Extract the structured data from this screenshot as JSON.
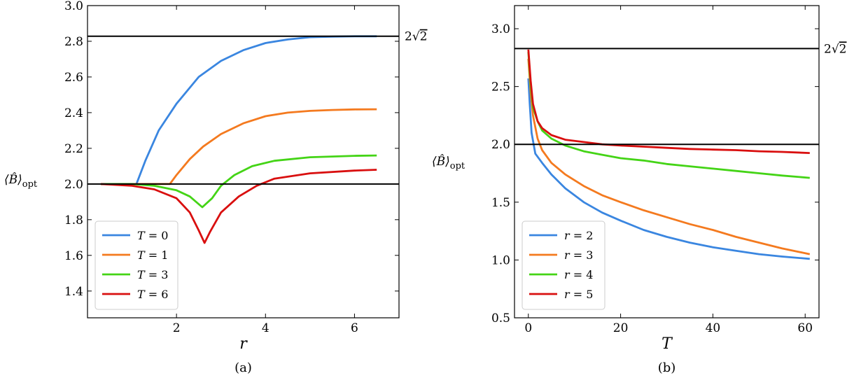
{
  "chart_data": [
    {
      "type": "line",
      "caption": "(a)",
      "xlabel": "r",
      "ylabel": "⟨B̂⟩opt",
      "ylabel_base": "⟨B̂⟩",
      "ylabel_sub": "opt",
      "xlim": [
        0.0,
        7.0
      ],
      "ylim": [
        1.25,
        3.0
      ],
      "xticks": [
        2,
        4,
        6
      ],
      "xtick_labels": [
        "2",
        "4",
        "6"
      ],
      "yticks": [
        1.4,
        1.6,
        1.8,
        2.0,
        2.2,
        2.4,
        2.6,
        2.8,
        3.0
      ],
      "ytick_labels": [
        "1.4",
        "1.6",
        "1.8",
        "2.0",
        "2.2",
        "2.4",
        "2.6",
        "2.8",
        "3.0"
      ],
      "reference_lines": [
        {
          "y": 2.8284,
          "label": "2√2",
          "label_base": "2",
          "label_root": "2"
        },
        {
          "y": 2.0,
          "label": ""
        }
      ],
      "legend": "lower-left",
      "series": [
        {
          "name": "T = 0",
          "var": "T",
          "val": "0",
          "color": "#3a86e0",
          "points": [
            [
              0.3,
              2.0
            ],
            [
              1.0,
              2.0
            ],
            [
              1.1,
              2.0
            ],
            [
              1.3,
              2.13
            ],
            [
              1.6,
              2.3
            ],
            [
              2.0,
              2.45
            ],
            [
              2.5,
              2.6
            ],
            [
              3.0,
              2.69
            ],
            [
              3.5,
              2.75
            ],
            [
              4.0,
              2.79
            ],
            [
              4.5,
              2.81
            ],
            [
              5.0,
              2.823
            ],
            [
              5.5,
              2.826
            ],
            [
              6.0,
              2.828
            ],
            [
              6.5,
              2.828
            ]
          ]
        },
        {
          "name": "T = 1",
          "var": "T",
          "val": "1",
          "color": "#f47a1f",
          "points": [
            [
              0.3,
              2.0
            ],
            [
              1.5,
              2.0
            ],
            [
              1.85,
              2.0
            ],
            [
              2.0,
              2.05
            ],
            [
              2.3,
              2.14
            ],
            [
              2.6,
              2.21
            ],
            [
              3.0,
              2.28
            ],
            [
              3.5,
              2.34
            ],
            [
              4.0,
              2.38
            ],
            [
              4.5,
              2.4
            ],
            [
              5.0,
              2.41
            ],
            [
              5.5,
              2.415
            ],
            [
              6.0,
              2.418
            ],
            [
              6.5,
              2.419
            ]
          ]
        },
        {
          "name": "T = 3",
          "var": "T",
          "val": "3",
          "color": "#44d416",
          "points": [
            [
              0.3,
              2.0
            ],
            [
              1.0,
              2.0
            ],
            [
              1.5,
              1.99
            ],
            [
              2.0,
              1.965
            ],
            [
              2.3,
              1.93
            ],
            [
              2.58,
              1.87
            ],
            [
              2.8,
              1.92
            ],
            [
              3.0,
              1.99
            ],
            [
              3.3,
              2.05
            ],
            [
              3.7,
              2.1
            ],
            [
              4.2,
              2.13
            ],
            [
              5.0,
              2.15
            ],
            [
              6.0,
              2.158
            ],
            [
              6.5,
              2.16
            ]
          ]
        },
        {
          "name": "T = 6",
          "var": "T",
          "val": "6",
          "color": "#d90f0f",
          "points": [
            [
              0.3,
              2.0
            ],
            [
              1.0,
              1.99
            ],
            [
              1.5,
              1.97
            ],
            [
              2.0,
              1.92
            ],
            [
              2.3,
              1.84
            ],
            [
              2.5,
              1.74
            ],
            [
              2.63,
              1.67
            ],
            [
              2.75,
              1.73
            ],
            [
              3.0,
              1.84
            ],
            [
              3.4,
              1.93
            ],
            [
              3.8,
              1.99
            ],
            [
              4.2,
              2.03
            ],
            [
              5.0,
              2.06
            ],
            [
              6.0,
              2.075
            ],
            [
              6.5,
              2.08
            ]
          ]
        }
      ]
    },
    {
      "type": "line",
      "caption": "(b)",
      "xlabel": "T",
      "ylabel": "⟨B̂⟩opt",
      "ylabel_base": "⟨B̂⟩",
      "ylabel_sub": "opt",
      "xlim": [
        -3.0,
        63.0
      ],
      "ylim": [
        0.5,
        3.2
      ],
      "xticks": [
        0,
        20,
        40,
        60
      ],
      "xtick_labels": [
        "0",
        "20",
        "40",
        "60"
      ],
      "yticks": [
        0.5,
        1.0,
        1.5,
        2.0,
        2.5,
        3.0
      ],
      "ytick_labels": [
        "0.5",
        "1.0",
        "1.5",
        "2.0",
        "2.5",
        "3.0"
      ],
      "reference_lines": [
        {
          "y": 2.8284,
          "label": "2√2",
          "label_base": "2",
          "label_root": "2"
        },
        {
          "y": 2.0,
          "label": ""
        }
      ],
      "legend": "lower-left",
      "series": [
        {
          "name": "r = 2",
          "var": "r",
          "val": "2",
          "color": "#3a86e0",
          "points": [
            [
              0,
              2.57
            ],
            [
              0.3,
              2.35
            ],
            [
              0.7,
              2.1
            ],
            [
              1.5,
              1.92
            ],
            [
              3,
              1.84
            ],
            [
              5,
              1.74
            ],
            [
              8,
              1.62
            ],
            [
              12,
              1.5
            ],
            [
              16,
              1.41
            ],
            [
              20,
              1.34
            ],
            [
              25,
              1.26
            ],
            [
              30,
              1.2
            ],
            [
              35,
              1.15
            ],
            [
              40,
              1.11
            ],
            [
              45,
              1.08
            ],
            [
              50,
              1.05
            ],
            [
              55,
              1.03
            ],
            [
              61,
              1.01
            ]
          ]
        },
        {
          "name": "r = 3",
          "var": "r",
          "val": "3",
          "color": "#f47a1f",
          "points": [
            [
              0,
              2.74
            ],
            [
              0.5,
              2.45
            ],
            [
              1,
              2.25
            ],
            [
              2,
              2.05
            ],
            [
              3,
              1.95
            ],
            [
              5,
              1.84
            ],
            [
              8,
              1.74
            ],
            [
              12,
              1.64
            ],
            [
              16,
              1.56
            ],
            [
              20,
              1.5
            ],
            [
              25,
              1.43
            ],
            [
              30,
              1.37
            ],
            [
              35,
              1.31
            ],
            [
              40,
              1.26
            ],
            [
              45,
              1.2
            ],
            [
              50,
              1.15
            ],
            [
              55,
              1.1
            ],
            [
              61,
              1.05
            ]
          ]
        },
        {
          "name": "r = 4",
          "var": "r",
          "val": "4",
          "color": "#44d416",
          "points": [
            [
              0,
              2.8
            ],
            [
              0.5,
              2.5
            ],
            [
              1,
              2.32
            ],
            [
              2,
              2.2
            ],
            [
              3,
              2.12
            ],
            [
              5,
              2.05
            ],
            [
              8,
              1.99
            ],
            [
              12,
              1.94
            ],
            [
              16,
              1.91
            ],
            [
              20,
              1.88
            ],
            [
              25,
              1.86
            ],
            [
              30,
              1.83
            ],
            [
              35,
              1.81
            ],
            [
              40,
              1.79
            ],
            [
              45,
              1.77
            ],
            [
              50,
              1.75
            ],
            [
              55,
              1.73
            ],
            [
              61,
              1.71
            ]
          ]
        },
        {
          "name": "r = 5",
          "var": "r",
          "val": "5",
          "color": "#d90f0f",
          "points": [
            [
              0,
              2.82
            ],
            [
              0.5,
              2.55
            ],
            [
              1,
              2.35
            ],
            [
              2,
              2.2
            ],
            [
              3,
              2.14
            ],
            [
              5,
              2.08
            ],
            [
              8,
              2.04
            ],
            [
              12,
              2.02
            ],
            [
              16,
              2.0
            ],
            [
              20,
              1.99
            ],
            [
              25,
              1.98
            ],
            [
              30,
              1.97
            ],
            [
              35,
              1.96
            ],
            [
              40,
              1.955
            ],
            [
              45,
              1.95
            ],
            [
              50,
              1.94
            ],
            [
              55,
              1.935
            ],
            [
              61,
              1.925
            ]
          ]
        }
      ]
    }
  ]
}
